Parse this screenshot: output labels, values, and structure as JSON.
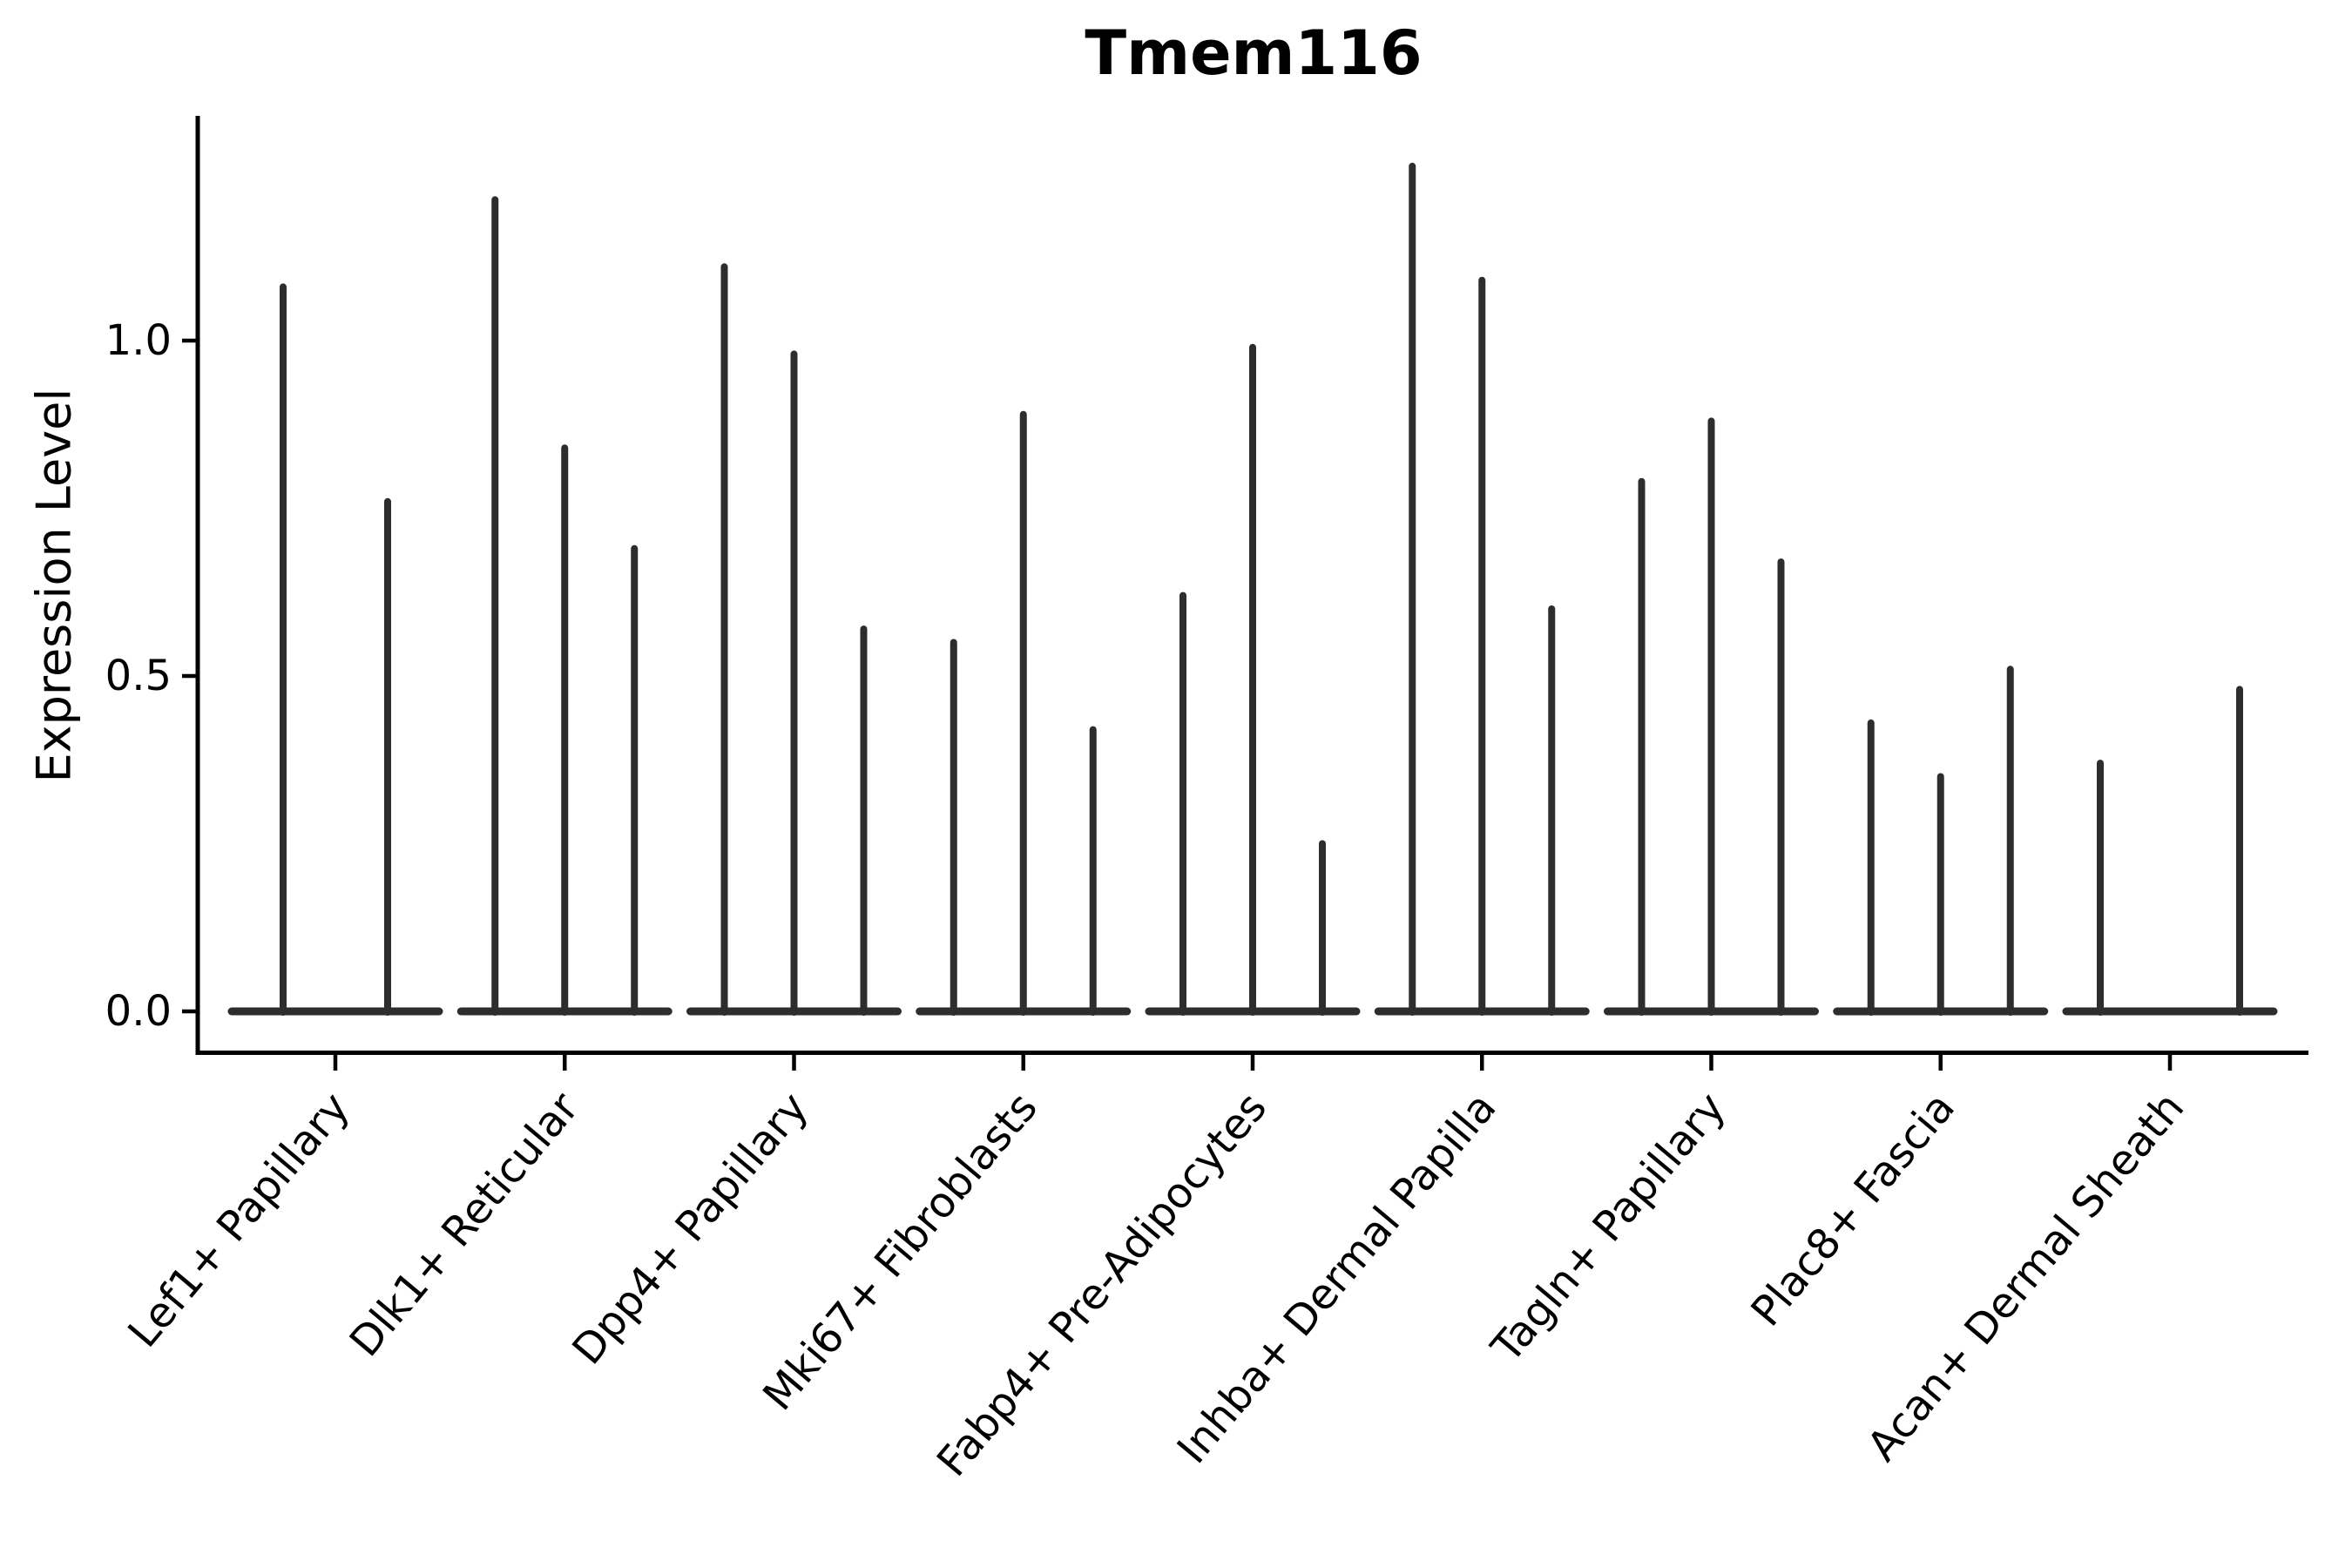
{
  "figure": {
    "background": "#ffffff"
  },
  "chart_data": {
    "type": "violin",
    "title": "Tmem116",
    "xlabel": "",
    "ylabel": "Expression Level",
    "ytick_labels": [
      "0.0",
      "0.5",
      "1.0"
    ],
    "yticks": [
      0.0,
      0.5,
      1.0
    ],
    "ylim": [
      -0.06,
      1.33
    ],
    "grid": false,
    "legend": false,
    "x_tick_rotation_deg": 50,
    "categories": [
      "Lef1+ Papillary",
      "Dlk1+ Reticular",
      "Dpp4+ Papillary",
      "Mki67+ Fibroblasts",
      "Fabp4+ Pre-Adipocytes",
      "Inhba+ Dermal Papilla",
      "Tagln+ Papillary",
      "Plac8+ Fascia",
      "Acan+ Dermal Sheath"
    ],
    "groups": [
      {
        "label": "Lef1+ Papillary",
        "violin_peaks": [
          1.08,
          0.76
        ]
      },
      {
        "label": "Dlk1+ Reticular",
        "violin_peaks": [
          1.21,
          0.84,
          0.69
        ]
      },
      {
        "label": "Dpp4+ Papillary",
        "violin_peaks": [
          1.11,
          0.98,
          0.57
        ]
      },
      {
        "label": "Mki67+ Fibroblasts",
        "violin_peaks": [
          0.55,
          0.89,
          0.42
        ]
      },
      {
        "label": "Fabp4+ Pre-Adipocytes",
        "violin_peaks": [
          0.62,
          0.99,
          0.25
        ]
      },
      {
        "label": "Inhba+ Dermal Papilla",
        "violin_peaks": [
          1.26,
          1.09,
          0.6
        ]
      },
      {
        "label": "Tagln+ Papillary",
        "violin_peaks": [
          0.79,
          0.88,
          0.67
        ]
      },
      {
        "label": "Plac8+ Fascia",
        "violin_peaks": [
          0.43,
          0.35,
          0.51
        ]
      },
      {
        "label": "Acan+ Dermal Sheath",
        "violin_peaks": [
          0.37,
          0,
          0.48
        ]
      }
    ],
    "colors": {
      "violin": "#2d2d2d",
      "axis": "#000000",
      "text": "#000000"
    }
  }
}
